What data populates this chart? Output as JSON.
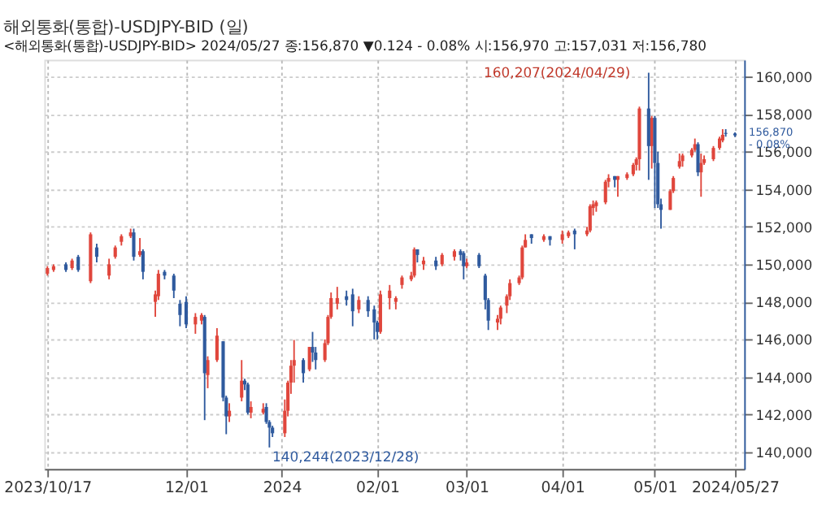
{
  "chart_data": {
    "type": "candlestick",
    "title": "해외통화(통합)-USDJPY-BID (일)",
    "subtitle": "<해외통화(통합)-USDJPY-BID> 2024/05/27 종:156,870 ▼0.124 - 0.08% 시:156,970 고:157,031 저:156,780",
    "xlim": [
      "2023-10-16",
      "2024-05-30"
    ],
    "xticks": [
      {
        "value": "2023-10-17",
        "label": "2023/10/17"
      },
      {
        "value": "2023-12-01",
        "label": "12/01"
      },
      {
        "value": "2024-01-01",
        "label": "2024"
      },
      {
        "value": "2024-02-01",
        "label": "02/01"
      },
      {
        "value": "2024-03-01",
        "label": "03/01"
      },
      {
        "value": "2024-04-01",
        "label": "04/01"
      },
      {
        "value": "2024-05-01",
        "label": "05/01"
      },
      {
        "value": "2024-05-27",
        "label": "2024/05/27"
      }
    ],
    "ylim": [
      139100,
      160900
    ],
    "yticks": [
      {
        "value": 140000,
        "label": "140,000"
      },
      {
        "value": 142000,
        "label": "142,000"
      },
      {
        "value": 144000,
        "label": "144,000"
      },
      {
        "value": 146000,
        "label": "146,000"
      },
      {
        "value": 148000,
        "label": "148,000"
      },
      {
        "value": 150000,
        "label": "150,000"
      },
      {
        "value": 152000,
        "label": "152,000"
      },
      {
        "value": 154000,
        "label": "154,000"
      },
      {
        "value": 156000,
        "label": "156,000"
      },
      {
        "value": 158000,
        "label": "158,000"
      },
      {
        "value": 160000,
        "label": "160,000"
      }
    ],
    "grid": true,
    "series": [
      {
        "color": "#e0463c",
        "x": [
          "2023-10-17",
          "2023-10-19",
          "2023-10-25",
          "2023-10-31",
          "2023-11-06",
          "2023-11-08",
          "2023-11-10",
          "2023-11-13",
          "2023-11-16",
          "2023-11-21",
          "2023-11-22",
          "2023-12-04",
          "2023-12-06",
          "2023-12-08",
          "2023-12-11",
          "2023-12-15",
          "2023-12-19",
          "2023-12-22",
          "2023-12-26",
          "2024-01-02",
          "2024-01-03",
          "2024-01-04",
          "2024-01-05",
          "2024-01-10",
          "2024-01-15",
          "2024-01-16",
          "2024-01-17",
          "2024-01-19",
          "2024-01-26",
          "2024-02-02",
          "2024-02-05",
          "2024-02-07",
          "2024-02-09",
          "2024-02-12",
          "2024-02-13",
          "2024-02-16",
          "2024-02-22",
          "2024-02-26",
          "2024-03-01",
          "2024-03-11",
          "2024-03-12",
          "2024-03-14",
          "2024-03-15",
          "2024-03-18",
          "2024-03-19",
          "2024-03-20",
          "2024-03-26",
          "2024-04-01",
          "2024-04-03",
          "2024-04-09",
          "2024-04-10",
          "2024-04-11",
          "2024-04-12",
          "2024-04-15",
          "2024-04-16",
          "2024-04-19",
          "2024-04-22",
          "2024-04-24",
          "2024-04-25",
          "2024-04-26",
          "2024-04-30",
          "2024-05-06",
          "2024-05-07",
          "2024-05-09",
          "2024-05-10",
          "2024-05-13",
          "2024-05-14",
          "2024-05-16",
          "2024-05-17",
          "2024-05-20",
          "2024-05-22",
          "2024-05-23"
        ],
        "ohlc": [
          [
            149500,
            149900,
            149400,
            149800
          ],
          [
            149700,
            150000,
            149600,
            149900
          ],
          [
            149800,
            150300,
            149700,
            150200
          ],
          [
            149100,
            151700,
            149000,
            151600
          ],
          [
            149400,
            150300,
            149200,
            150000
          ],
          [
            150400,
            151000,
            150300,
            150900
          ],
          [
            151200,
            151600,
            151000,
            151500
          ],
          [
            151500,
            151900,
            151400,
            151700
          ],
          [
            150500,
            151400,
            150400,
            150700
          ],
          [
            148000,
            148600,
            147200,
            148400
          ],
          [
            148300,
            149700,
            148100,
            149500
          ],
          [
            146800,
            147400,
            146300,
            147200
          ],
          [
            147000,
            147400,
            146800,
            147300
          ],
          [
            144100,
            145100,
            143400,
            144900
          ],
          [
            144900,
            146600,
            144800,
            146200
          ],
          [
            141900,
            142600,
            141600,
            142200
          ],
          [
            142900,
            144900,
            142700,
            143800
          ],
          [
            142100,
            142700,
            141800,
            142400
          ],
          [
            142100,
            142600,
            142000,
            142300
          ],
          [
            141000,
            142800,
            140800,
            142200
          ],
          [
            142200,
            143800,
            141900,
            143700
          ],
          [
            143700,
            144900,
            143100,
            144600
          ],
          [
            144600,
            145970,
            143700,
            144900
          ],
          [
            144400,
            145600,
            144300,
            145600
          ],
          [
            144900,
            146000,
            144800,
            145800
          ],
          [
            145800,
            147300,
            145700,
            147200
          ],
          [
            147200,
            148500,
            147100,
            148200
          ],
          [
            147900,
            148800,
            147600,
            148200
          ],
          [
            147600,
            148300,
            147400,
            148100
          ],
          [
            146400,
            148600,
            146300,
            148400
          ],
          [
            148200,
            148900,
            147600,
            148600
          ],
          [
            148000,
            148300,
            147600,
            148200
          ],
          [
            148900,
            149400,
            148700,
            149300
          ],
          [
            149200,
            149600,
            149100,
            149400
          ],
          [
            149400,
            150900,
            149300,
            150800
          ],
          [
            150000,
            150400,
            149700,
            150200
          ],
          [
            150000,
            150600,
            149900,
            150500
          ],
          [
            150400,
            150800,
            150200,
            150700
          ],
          [
            149900,
            150300,
            149800,
            150100
          ],
          [
            146900,
            147300,
            146500,
            147100
          ],
          [
            147100,
            147800,
            146800,
            147700
          ],
          [
            147800,
            148400,
            147400,
            148300
          ],
          [
            148300,
            149200,
            148100,
            149000
          ],
          [
            149000,
            149400,
            148900,
            149300
          ],
          [
            149300,
            151000,
            149200,
            150900
          ],
          [
            150900,
            151600,
            150900,
            151300
          ],
          [
            151300,
            151600,
            151200,
            151500
          ],
          [
            151300,
            151800,
            151100,
            151600
          ],
          [
            151500,
            151800,
            151400,
            151700
          ],
          [
            151600,
            152000,
            151500,
            151800
          ],
          [
            151800,
            153200,
            151700,
            153100
          ],
          [
            153000,
            153400,
            152600,
            153200
          ],
          [
            153100,
            153400,
            152800,
            153300
          ],
          [
            153300,
            154500,
            153200,
            154400
          ],
          [
            154400,
            154800,
            154100,
            154600
          ],
          [
            154500,
            154700,
            153600,
            154700
          ],
          [
            154600,
            154900,
            154500,
            154800
          ],
          [
            154800,
            155400,
            154700,
            155300
          ],
          [
            155300,
            155700,
            155000,
            155600
          ],
          [
            155600,
            158400,
            155000,
            158300
          ],
          [
            156300,
            157900,
            155100,
            157800
          ],
          [
            152900,
            154000,
            152900,
            153900
          ],
          [
            153900,
            154700,
            153800,
            154600
          ],
          [
            155200,
            155900,
            155100,
            155500
          ],
          [
            155500,
            155900,
            155200,
            155800
          ],
          [
            155800,
            156200,
            155700,
            156100
          ],
          [
            156100,
            156700,
            156000,
            156400
          ],
          [
            154900,
            155900,
            153600,
            155400
          ],
          [
            155400,
            155800,
            155300,
            155600
          ],
          [
            155600,
            156300,
            155500,
            156200
          ],
          [
            156200,
            156800,
            156100,
            156700
          ],
          [
            156600,
            157200,
            156500,
            156900
          ]
        ]
      },
      {
        "color": "#2f5a9e",
        "x": [
          "2023-10-23",
          "2023-10-27",
          "2023-11-02",
          "2023-11-14",
          "2023-11-17",
          "2023-11-24",
          "2023-11-27",
          "2023-11-29",
          "2023-12-01",
          "2023-12-07",
          "2023-12-13",
          "2023-12-14",
          "2023-12-20",
          "2023-12-21",
          "2023-12-27",
          "2023-12-28",
          "2023-12-29",
          "2024-01-08",
          "2024-01-11",
          "2024-01-12",
          "2024-01-22",
          "2024-01-24",
          "2024-01-29",
          "2024-01-31",
          "2024-02-01",
          "2024-02-14",
          "2024-02-20",
          "2024-02-28",
          "2024-02-29",
          "2024-03-05",
          "2024-03-07",
          "2024-03-08",
          "2024-03-22",
          "2024-03-28",
          "2024-04-05",
          "2024-04-18",
          "2024-04-29",
          "2024-05-01",
          "2024-05-02",
          "2024-05-03",
          "2024-05-15",
          "2024-05-24",
          "2024-05-27"
        ],
        "ohlc": [
          [
            150000,
            150100,
            149600,
            149700
          ],
          [
            150400,
            150500,
            149600,
            149700
          ],
          [
            150900,
            151100,
            150100,
            150400
          ],
          [
            151700,
            151900,
            150200,
            150400
          ],
          [
            150700,
            150800,
            149200,
            149600
          ],
          [
            149600,
            149700,
            149200,
            149400
          ],
          [
            149400,
            149500,
            148200,
            148600
          ],
          [
            147900,
            148100,
            146700,
            147300
          ],
          [
            148000,
            148300,
            146600,
            146800
          ],
          [
            147200,
            147300,
            141700,
            144200
          ],
          [
            145900,
            145900,
            142700,
            142900
          ],
          [
            142900,
            143000,
            140950,
            141900
          ],
          [
            143800,
            143900,
            143300,
            143600
          ],
          [
            143600,
            143700,
            142000,
            142100
          ],
          [
            142400,
            142600,
            141500,
            141600
          ],
          [
            141600,
            141700,
            140244,
            141300
          ],
          [
            141300,
            141400,
            140800,
            141000
          ],
          [
            144900,
            145000,
            143700,
            144200
          ],
          [
            145600,
            146400,
            144800,
            145300
          ],
          [
            145300,
            145600,
            144400,
            144900
          ],
          [
            148300,
            148600,
            147800,
            148100
          ],
          [
            148400,
            148700,
            146700,
            147500
          ],
          [
            148100,
            148300,
            147200,
            147500
          ],
          [
            147600,
            147800,
            146000,
            146900
          ],
          [
            146900,
            147000,
            146000,
            146400
          ],
          [
            150800,
            150800,
            150100,
            150500
          ],
          [
            150200,
            150400,
            149700,
            149900
          ],
          [
            150700,
            150800,
            150200,
            150500
          ],
          [
            150600,
            150700,
            149200,
            149900
          ],
          [
            150500,
            150600,
            149800,
            149900
          ],
          [
            149400,
            149500,
            147600,
            148100
          ],
          [
            148100,
            148200,
            146500,
            147000
          ],
          [
            151600,
            151600,
            151100,
            151400
          ],
          [
            151500,
            151500,
            151000,
            151300
          ],
          [
            151800,
            151900,
            150800,
            151600
          ],
          [
            154700,
            154700,
            154100,
            154500
          ],
          [
            158300,
            160207,
            154500,
            156300
          ],
          [
            157800,
            157900,
            153000,
            155400
          ],
          [
            155400,
            156000,
            153000,
            153200
          ],
          [
            153200,
            153500,
            151900,
            152900
          ],
          [
            156400,
            156500,
            154700,
            154900
          ],
          [
            157000,
            157200,
            156800,
            156950
          ],
          [
            156970,
            157031,
            156780,
            156870
          ]
        ]
      }
    ],
    "annotations": [
      {
        "text": "160,207(2024/04/29)",
        "x": "2024-04-29",
        "y": 160207
      },
      {
        "text": "140,244(2023/12/28)",
        "x": "2023-12-28",
        "y": 140244
      },
      {
        "text": "156,870\n- 0.08%",
        "x": "2024-05-27",
        "y": 156870
      }
    ]
  }
}
